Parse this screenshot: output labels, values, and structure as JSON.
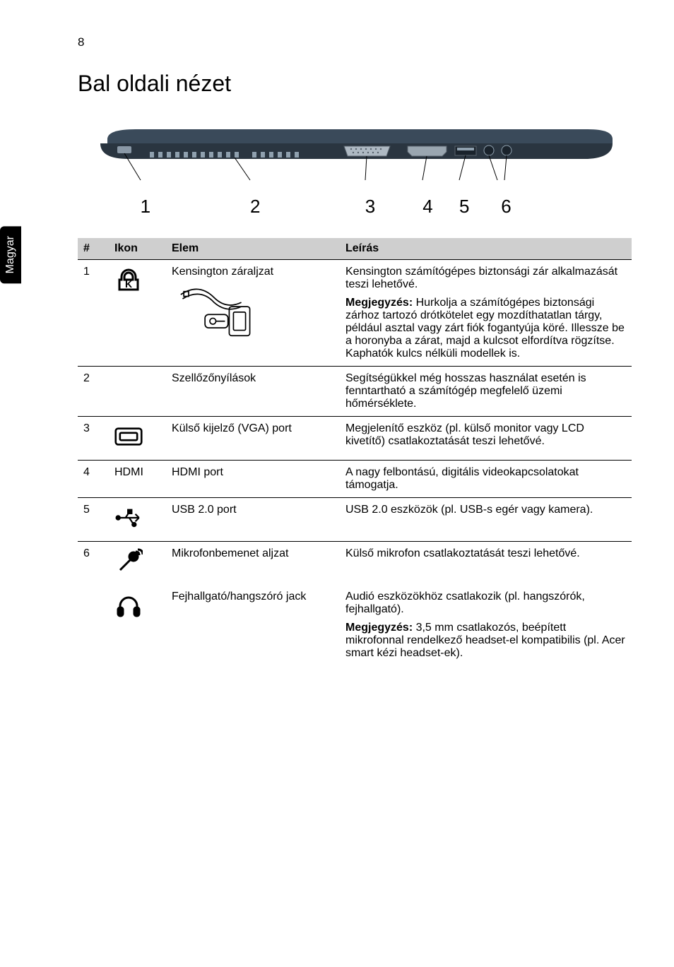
{
  "page_number": "8",
  "side_tab": "Magyar",
  "title": "Bal oldali nézet",
  "figure": {
    "callouts": [
      "1",
      "2",
      "3",
      "4",
      "5",
      "6"
    ],
    "callout_positions_pct": [
      9,
      30,
      52,
      63,
      70,
      78
    ]
  },
  "table": {
    "headers": {
      "num": "#",
      "icon": "Ikon",
      "elem": "Elem",
      "desc": "Leírás"
    },
    "rows": [
      {
        "num": "1",
        "icon": "kensington-lock-icon",
        "elem": "Kensington záraljzat",
        "desc": "Kensington számítógépes biztonsági zár alkalmazását teszi lehetővé.",
        "note_label": "Megjegyzés:",
        "note": " Hurkolja a számítógépes biztonsági zárhoz tartozó drótkötelet egy mozdíthatatlan tárgy, például asztal vagy zárt fiók fogantyúja köré. Illessze be a horonyba a zárat, majd a kulcsot elfordítva rögzítse. Kaphatók kulcs nélküli modellek is.",
        "has_lock_drawing": true
      },
      {
        "num": "2",
        "icon": null,
        "elem": "Szellőzőnyílások",
        "desc": "Segítségükkel még hosszas használat esetén is fenntartható a számítógép megfelelő üzemi hőmérséklete."
      },
      {
        "num": "3",
        "icon": "vga-icon",
        "elem": "Külső kijelző (VGA) port",
        "desc": "Megjelenítő eszköz (pl. külső monitor vagy LCD kivetítő) csatlakoztatását teszi lehetővé."
      },
      {
        "num": "4",
        "icon_text": "HDMI",
        "elem": "HDMI port",
        "desc": "A nagy felbontású, digitális videokapcsolatokat támogatja."
      },
      {
        "num": "5",
        "icon": "usb-icon",
        "elem": "USB 2.0 port",
        "desc": "USB 2.0 eszközök (pl. USB-s egér vagy kamera)."
      },
      {
        "num": "6",
        "icon": "mic-icon",
        "elem": "Mikrofonbemenet aljzat",
        "desc": "Külső mikrofon csatlakoztatását teszi lehetővé."
      },
      {
        "num": "",
        "icon": "headphone-icon",
        "elem": "Fejhallgató/hangszóró jack",
        "desc": "Audió eszközökhöz csatlakozik (pl. hangszórók, fejhallgató).",
        "note_label": "Megjegyzés:",
        "note": " 3,5 mm csatlakozós, beépített mikrofonnal rendelkező headset-el kompatibilis (pl. Acer smart kézi headset-ek).",
        "continuation": true
      }
    ]
  },
  "colors": {
    "header_bg": "#cfcfcf",
    "text": "#000000",
    "rule": "#000000",
    "laptop_body": "#3a4a5a",
    "laptop_dark": "#1a232c",
    "side_tab_bg": "#000000",
    "side_tab_fg": "#ffffff"
  }
}
